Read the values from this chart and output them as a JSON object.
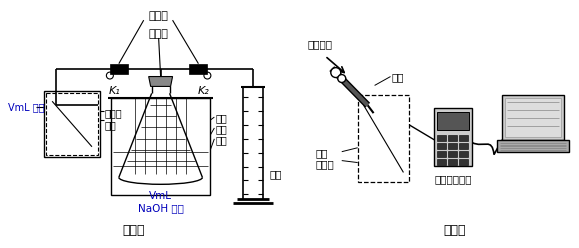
{
  "bg_color": "#ffffff",
  "black": "#000000",
  "blue": "#0000bb",
  "exp1_label": "实验一",
  "exp2_label": "实验二",
  "label_danhuang": "弹簧夹",
  "label_ranshao": "燃烧匙",
  "label_VmL_qi": "VmL 气体",
  "label_yiyong": "医用输\n液袋",
  "label_K1": "K₁",
  "label_K2": "K₂",
  "label_guoliang": "过量",
  "label_bailin": "白磷",
  "label_shaobei": "烧杯",
  "label_VmL_NaOH": "VmL\nNaOH 溶液",
  "label_liangtong": "量筒",
  "label_huchu": "呼出其他",
  "label_tantou": "探头",
  "label_shipinbao": "食品\n保鲜袋",
  "label_shuju": "数据采集仪器"
}
